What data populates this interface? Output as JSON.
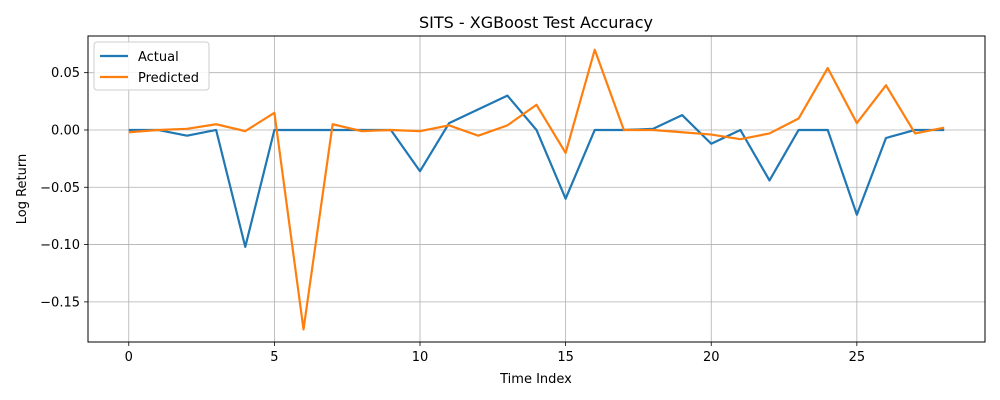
{
  "chart_data": {
    "type": "line",
    "title": "SITS - XGBoost Test Accuracy",
    "xlabel": "Time Index",
    "ylabel": "Log Return",
    "xlim": [
      -1.4,
      29.4
    ],
    "ylim": [
      -0.185,
      0.082
    ],
    "x_ticks": [
      0,
      5,
      10,
      15,
      20,
      25
    ],
    "x_tick_labels": [
      "0",
      "5",
      "10",
      "15",
      "20",
      "25"
    ],
    "y_ticks": [
      -0.15,
      -0.1,
      -0.05,
      0.0,
      0.05
    ],
    "y_tick_labels": [
      "−0.15",
      "−0.10",
      "−0.05",
      "0.00",
      "0.05"
    ],
    "grid": true,
    "legend_position": "top-left",
    "x": [
      0,
      1,
      2,
      3,
      4,
      5,
      6,
      7,
      8,
      9,
      10,
      11,
      12,
      13,
      14,
      15,
      16,
      17,
      18,
      19,
      20,
      21,
      22,
      23,
      24,
      25,
      26,
      27,
      28
    ],
    "series": [
      {
        "name": "Actual",
        "color": "#1f77b4",
        "values": [
          0.0,
          0.0,
          -0.005,
          0.0,
          -0.102,
          0.0,
          0.0,
          0.0,
          0.0,
          0.0,
          -0.036,
          0.006,
          0.018,
          0.03,
          0.0,
          -0.06,
          0.0,
          0.0,
          0.001,
          0.013,
          -0.012,
          0.0,
          -0.044,
          0.0,
          0.0,
          -0.074,
          -0.007,
          0.0,
          0.0
        ]
      },
      {
        "name": "Predicted",
        "color": "#ff7f0e",
        "values": [
          -0.002,
          0.0,
          0.001,
          0.005,
          -0.001,
          0.015,
          -0.174,
          0.005,
          -0.001,
          0.0,
          -0.001,
          0.004,
          -0.005,
          0.004,
          0.022,
          -0.02,
          0.07,
          0.0,
          0.0,
          -0.002,
          -0.004,
          -0.008,
          -0.003,
          0.01,
          0.054,
          0.006,
          0.039,
          -0.003,
          0.002
        ]
      }
    ]
  }
}
